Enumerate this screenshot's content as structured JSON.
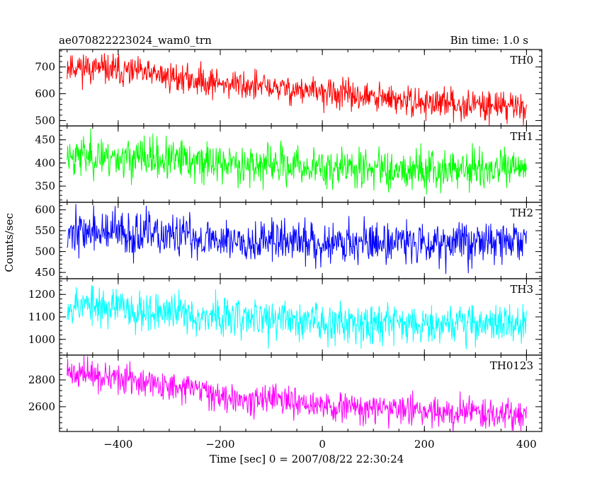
{
  "header": {
    "title": "ae070822223024_wam0_trn",
    "bin_time": "Bin time: 1.0 s"
  },
  "chart_data": {
    "type": "line",
    "xlabel": "Time [sec] 0 = 2007/08/22 22:30:24",
    "ylabel": "Counts/sec",
    "xlim": [
      -515,
      430
    ],
    "x_ticks": [
      -400,
      -200,
      0,
      200,
      400
    ],
    "x_tick_labels": [
      "−400",
      "−200",
      "0",
      "200",
      "400"
    ],
    "x_range": [
      -500,
      400
    ],
    "grid": false,
    "panels": [
      {
        "name": "TH0",
        "color": "#ff0000",
        "ylim": [
          480,
          765
        ],
        "yticks": [
          500,
          600,
          700
        ],
        "ytick_labels": [
          "500",
          "600",
          "700"
        ],
        "trend_x": [
          -500,
          -350,
          -200,
          0,
          200,
          400
        ],
        "trend_y": [
          705,
          675,
          640,
          605,
          565,
          555
        ],
        "noise": 28,
        "seed": 11
      },
      {
        "name": "TH1",
        "color": "#00ff00",
        "ylim": [
          315,
          480
        ],
        "yticks": [
          350,
          400,
          450
        ],
        "ytick_labels": [
          "350",
          "400",
          "450"
        ],
        "trend_x": [
          -500,
          -200,
          0,
          400
        ],
        "trend_y": [
          418,
          400,
          390,
          385
        ],
        "noise": 22,
        "seed": 23
      },
      {
        "name": "TH2",
        "color": "#0000ff",
        "ylim": [
          435,
          618
        ],
        "yticks": [
          450,
          500,
          550,
          600
        ],
        "ytick_labels": [
          "450",
          "500",
          "550",
          "600"
        ],
        "trend_x": [
          -500,
          -200,
          0,
          400
        ],
        "trend_y": [
          550,
          530,
          522,
          525
        ],
        "noise": 26,
        "seed": 37
      },
      {
        "name": "TH3",
        "color": "#00ffff",
        "ylim": [
          930,
          1270
        ],
        "yticks": [
          1000,
          1100,
          1200
        ],
        "ytick_labels": [
          "1000",
          "1100",
          "1200"
        ],
        "trend_x": [
          -500,
          -200,
          0,
          400
        ],
        "trend_y": [
          1160,
          1100,
          1080,
          1070
        ],
        "noise": 45,
        "seed": 53
      },
      {
        "name": "TH0123",
        "color": "#ff00ff",
        "ylim": [
          2415,
          2985
        ],
        "yticks": [
          2600,
          2800
        ],
        "ytick_labels": [
          "2600",
          "2800"
        ],
        "trend_x": [
          -500,
          -350,
          -200,
          0,
          200,
          400
        ],
        "trend_y": [
          2860,
          2780,
          2690,
          2600,
          2570,
          2545
        ],
        "noise": 55,
        "seed": 71
      }
    ]
  }
}
